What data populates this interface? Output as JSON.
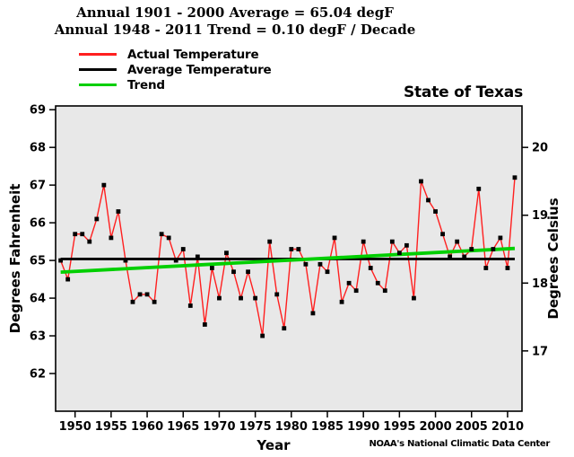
{
  "title": {
    "line1": "Annual 1901 - 2000 Average = 65.04 degF",
    "line2": "Annual 1948 - 2011 Trend = 0.10 degF / Decade"
  },
  "legend": {
    "items": [
      {
        "label": "Actual Temperature",
        "color": "#ff1f1f"
      },
      {
        "label": "Average Temperature",
        "color": "#000000"
      },
      {
        "label": "Trend",
        "color": "#00cf00"
      }
    ]
  },
  "region_label": "State of Texas",
  "axes": {
    "left_label": "Degrees Fahrenheit",
    "right_label": "Degrees Celsius",
    "x_label": "Year"
  },
  "credit": "NOAA's National Climatic Data Center",
  "chart_data": {
    "type": "line",
    "title": "Annual 1901 - 2000 Average = 65.04 degF / Annual 1948 - 2011 Trend = 0.10 degF / Decade",
    "xlabel": "Year",
    "ylabel_left": "Degrees Fahrenheit",
    "ylabel_right": "Degrees Celsius",
    "legend_position": "top-left",
    "grid": false,
    "plot_bg": "#e8e8e8",
    "marker_color": "#000000",
    "xlim": [
      1947.3,
      2012
    ],
    "ylim_f": [
      61.0,
      69.1
    ],
    "xticks": [
      1950,
      1955,
      1960,
      1965,
      1970,
      1975,
      1980,
      1985,
      1990,
      1995,
      2000,
      2005,
      2010
    ],
    "yticks_fahrenheit": [
      62,
      63,
      64,
      65,
      66,
      67,
      68,
      69
    ],
    "yticks_celsius": [
      17,
      18,
      19,
      20
    ],
    "x": [
      1948,
      1949,
      1950,
      1951,
      1952,
      1953,
      1954,
      1955,
      1956,
      1957,
      1958,
      1959,
      1960,
      1961,
      1962,
      1963,
      1964,
      1965,
      1966,
      1967,
      1968,
      1969,
      1970,
      1971,
      1972,
      1973,
      1974,
      1975,
      1976,
      1977,
      1978,
      1979,
      1980,
      1981,
      1982,
      1983,
      1984,
      1985,
      1986,
      1987,
      1988,
      1989,
      1990,
      1991,
      1992,
      1993,
      1994,
      1995,
      1996,
      1997,
      1998,
      1999,
      2000,
      2001,
      2002,
      2003,
      2004,
      2005,
      2006,
      2007,
      2008,
      2009,
      2010,
      2011
    ],
    "series": [
      {
        "name": "Actual Temperature",
        "style": "line+markers",
        "color": "#ff1f1f",
        "values": [
          65.0,
          64.5,
          65.7,
          65.7,
          65.5,
          66.1,
          67.0,
          65.6,
          66.3,
          65.0,
          63.9,
          64.1,
          64.1,
          63.9,
          65.7,
          65.6,
          65.0,
          65.3,
          63.8,
          65.1,
          63.3,
          64.8,
          64.0,
          65.2,
          64.7,
          64.0,
          64.7,
          64.0,
          63.0,
          65.5,
          64.1,
          63.2,
          65.3,
          65.3,
          64.9,
          63.6,
          64.9,
          64.7,
          65.6,
          63.9,
          64.4,
          64.2,
          65.5,
          64.8,
          64.4,
          64.2,
          65.5,
          65.2,
          65.4,
          64.0,
          67.1,
          66.6,
          66.3,
          65.7,
          65.1,
          65.5,
          65.1,
          65.3,
          66.9,
          64.8,
          65.3,
          65.6,
          64.8,
          67.2
        ]
      },
      {
        "name": "Average Temperature",
        "style": "hline",
        "color": "#000000",
        "value": 65.04,
        "x_range": [
          1948,
          2011
        ]
      },
      {
        "name": "Trend",
        "style": "line",
        "color": "#00cf00",
        "x": [
          1948,
          2011
        ],
        "values": [
          64.69,
          65.32
        ]
      }
    ]
  }
}
